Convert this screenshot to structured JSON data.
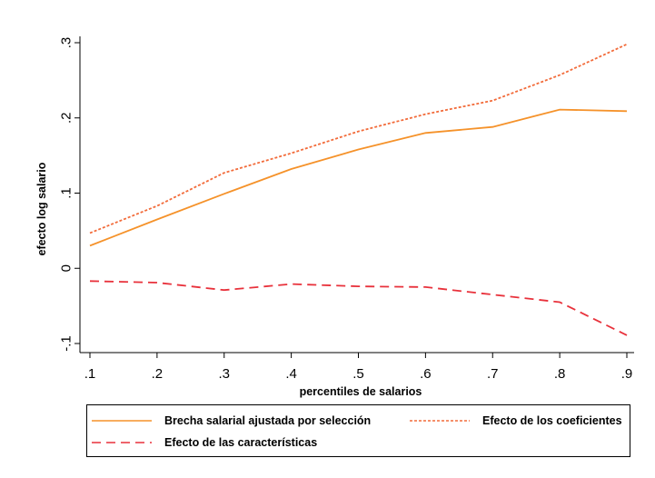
{
  "chart_data": {
    "type": "line",
    "title": "",
    "xlabel": "percentiles de salarios",
    "ylabel": "efecto log salario",
    "x": [
      0.1,
      0.2,
      0.3,
      0.4,
      0.5,
      0.6,
      0.7,
      0.8,
      0.9
    ],
    "x_tick_labels": [
      ".1",
      ".2",
      ".3",
      ".4",
      ".5",
      ".6",
      ".7",
      ".8",
      ".9"
    ],
    "y_ticks": [
      -0.1,
      0,
      0.1,
      0.2,
      0.3
    ],
    "y_tick_labels": [
      "-.1",
      "0",
      ".1",
      ".2",
      ".3"
    ],
    "xlim": [
      0.1,
      0.9
    ],
    "ylim": [
      -0.1,
      0.3
    ],
    "grid": false,
    "legend_position": "bottom",
    "series": [
      {
        "name": "Brecha salarial ajustada por selección",
        "color": "#f5922a",
        "style": "solid",
        "values": [
          0.03,
          0.065,
          0.099,
          0.132,
          0.158,
          0.18,
          0.188,
          0.211,
          0.209
        ]
      },
      {
        "name": "Efecto de los coeficientes",
        "color": "#f26b3a",
        "style": "dotted",
        "values": [
          0.047,
          0.083,
          0.127,
          0.153,
          0.182,
          0.205,
          0.223,
          0.257,
          0.298
        ]
      },
      {
        "name": "Efecto de las características",
        "color": "#e8313b",
        "style": "dashed",
        "values": [
          -0.017,
          -0.019,
          -0.029,
          -0.021,
          -0.024,
          -0.025,
          -0.035,
          -0.045,
          -0.089
        ]
      }
    ]
  }
}
